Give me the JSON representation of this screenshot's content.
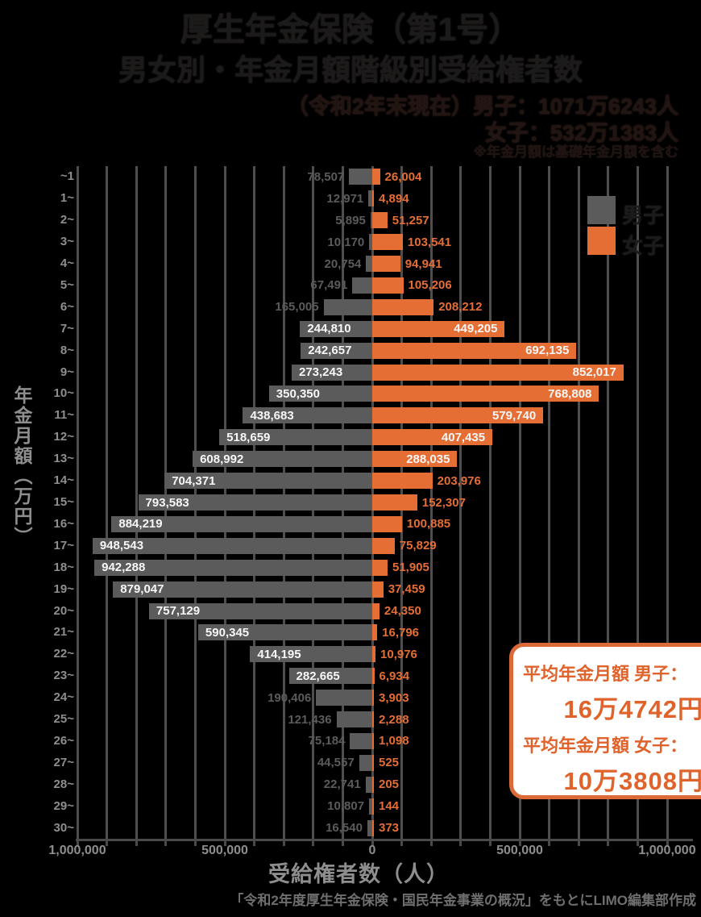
{
  "title": {
    "line1": "厚生年金保険（第1号）",
    "line2": "男女別・年金月額階級別受給権者数",
    "line3": "（令和2年末現在）男子：1071万6243人",
    "line4": "女子：532万1383人",
    "line5": "※年金月額は基礎年金月額を含む"
  },
  "legend": {
    "male": "男子",
    "female": "女子"
  },
  "summary_box": {
    "male_label": "平均年金月額 男子：",
    "male_value": "16万4742円",
    "female_label": "平均年金月額 女子：",
    "female_value": "10万3808円"
  },
  "credit": "「令和2年度厚生年金保険・国民年金事業の概況」をもとにLIMO編集部作成",
  "colors": {
    "background": "#000000",
    "male_bar": "#5b5b5b",
    "female_bar": "#e56e35",
    "inside_label": "#f7f7f7",
    "gridline": "#4e4e4e",
    "box_border": "#db6a38",
    "box_text": "#e0632c"
  },
  "chart_data": {
    "type": "bar",
    "orientation": "horizontal-pyramid",
    "title": "厚生年金保険（第1号）男女別・年金月額階級別受給権者数",
    "xlabel": "受給権者数（人）",
    "ylabel": "年金月額（万円）",
    "categories": [
      "~1",
      "1~",
      "2~",
      "3~",
      "4~",
      "5~",
      "6~",
      "7~",
      "8~",
      "9~",
      "10~",
      "11~",
      "12~",
      "13~",
      "14~",
      "15~",
      "16~",
      "17~",
      "18~",
      "19~",
      "20~",
      "21~",
      "22~",
      "23~",
      "24~",
      "25~",
      "26~",
      "27~",
      "28~",
      "29~",
      "30~"
    ],
    "series": [
      {
        "name": "男子",
        "side": "left",
        "color": "#5b5b5b",
        "values": [
          78507,
          12971,
          5895,
          10170,
          20754,
          67491,
          165005,
          244810,
          242657,
          273243,
          350350,
          438683,
          518659,
          608992,
          704371,
          793583,
          884219,
          948543,
          942288,
          879047,
          757129,
          590345,
          414195,
          282665,
          190406,
          121436,
          75184,
          44557,
          22741,
          10807,
          16540
        ]
      },
      {
        "name": "女子",
        "side": "right",
        "color": "#e56e35",
        "values": [
          26004,
          4894,
          51257,
          103541,
          94941,
          105206,
          208212,
          449205,
          692135,
          852017,
          768808,
          579740,
          407435,
          288035,
          203976,
          152307,
          100885,
          75829,
          51905,
          37459,
          24350,
          16796,
          10976,
          6934,
          3903,
          2288,
          1098,
          525,
          205,
          144,
          373
        ]
      }
    ],
    "x_axis": {
      "range": [
        -1000000,
        1000000
      ],
      "gridline_interval": 100000,
      "ticks": [
        -1000000,
        -500000,
        0,
        500000,
        1000000
      ],
      "tick_labels": [
        "1,000,000",
        "500,000",
        "0",
        "500,000",
        "1,000,000"
      ]
    },
    "legend_position": "top-right",
    "grid": true
  }
}
